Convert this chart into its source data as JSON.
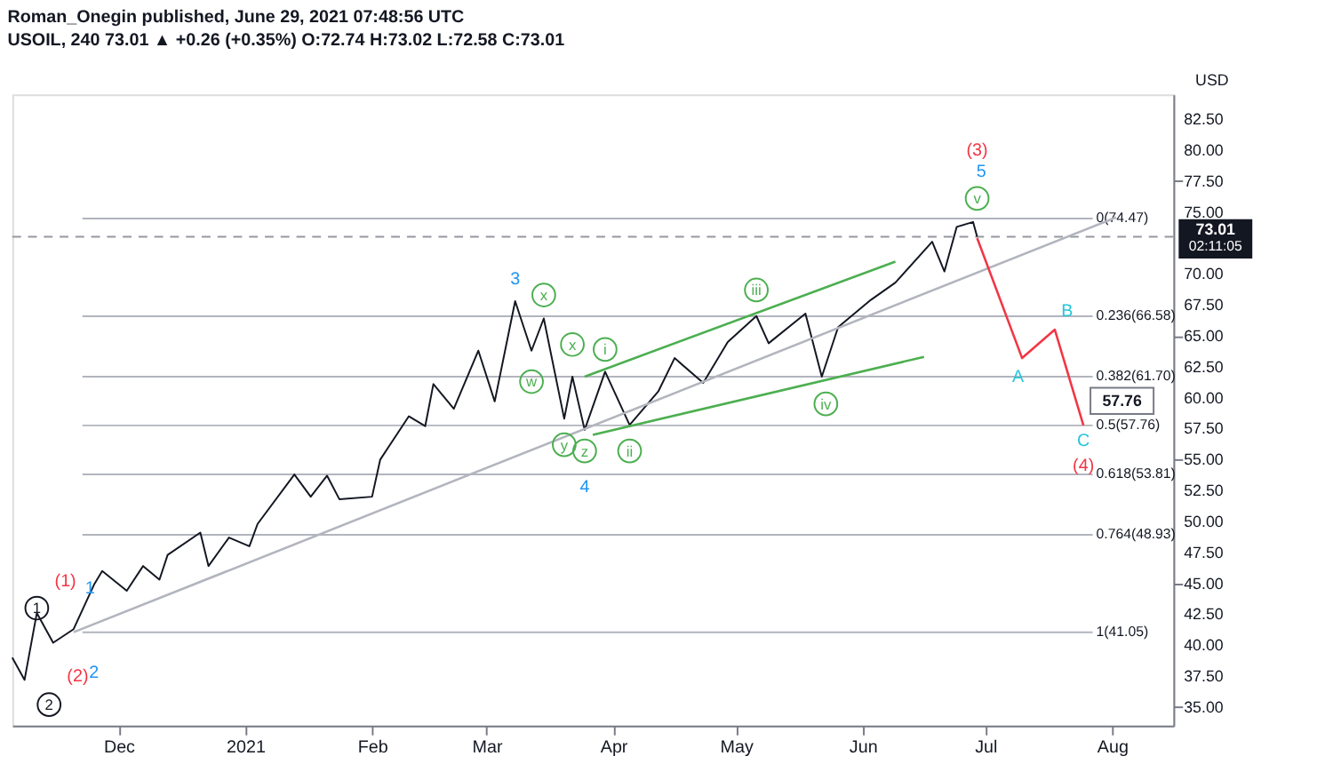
{
  "chart_data": {
    "type": "line",
    "title": "Roman_Onegin published, June 29, 2021 07:48:56 UTC",
    "subtitle": "USOIL, 240 73.01 ▲ +0.26 (+0.35%) O:72.74 H:73.02 L:72.58 C:73.01",
    "ylabel": "USD",
    "xlim": [
      "2020-11-05",
      "2021-08-16"
    ],
    "xticks": [
      {
        "value": "2020-12-01",
        "label": "Dec"
      },
      {
        "value": "2021-01-01",
        "label": "2021"
      },
      {
        "value": "2021-02-01",
        "label": "Feb"
      },
      {
        "value": "2021-03-01",
        "label": "Mar"
      },
      {
        "value": "2021-04-01",
        "label": "Apr"
      },
      {
        "value": "2021-05-01",
        "label": "May"
      },
      {
        "value": "2021-06-01",
        "label": "Jun"
      },
      {
        "value": "2021-07-01",
        "label": "Jul"
      },
      {
        "value": "2021-08-01",
        "label": "Aug"
      }
    ],
    "ylim": [
      33.5,
      84.5
    ],
    "yticks": [
      {
        "value": 35,
        "label": "35.00"
      },
      {
        "value": 37.5,
        "label": "37.50"
      },
      {
        "value": 40,
        "label": "40.00"
      },
      {
        "value": 42.5,
        "label": "42.50"
      },
      {
        "value": 45,
        "label": "45.00"
      },
      {
        "value": 47.5,
        "label": "47.50"
      },
      {
        "value": 50,
        "label": "50.00"
      },
      {
        "value": 52.5,
        "label": "52.50"
      },
      {
        "value": 55,
        "label": "55.00"
      },
      {
        "value": 57.5,
        "label": "57.50"
      },
      {
        "value": 60,
        "label": "60.00"
      },
      {
        "value": 62.5,
        "label": "62.50"
      },
      {
        "value": 65,
        "label": "65.00"
      },
      {
        "value": 67.5,
        "label": "67.50"
      },
      {
        "value": 70,
        "label": "70.00"
      },
      {
        "value": 75,
        "label": "75.00"
      },
      {
        "value": 77.5,
        "label": "77.50"
      },
      {
        "value": 80,
        "label": "80.00"
      },
      {
        "value": 82.5,
        "label": "82.50"
      }
    ],
    "grid": false,
    "series": [
      {
        "color": "#131722",
        "x": [
          "2020-11-05",
          "2020-11-08",
          "2020-11-11",
          "2020-11-15",
          "2020-11-20",
          "2020-11-25",
          "2020-11-27",
          "2020-12-03",
          "2020-12-07",
          "2020-12-11",
          "2020-12-13",
          "2020-12-21",
          "2020-12-23",
          "2020-12-28",
          "2021-01-02",
          "2021-01-04",
          "2021-01-13",
          "2021-01-17",
          "2021-01-21",
          "2021-01-24",
          "2021-02-01",
          "2021-02-03",
          "2021-02-10",
          "2021-02-14",
          "2021-02-16",
          "2021-02-21",
          "2021-02-27",
          "2021-03-03",
          "2021-03-08",
          "2021-03-12",
          "2021-03-15",
          "2021-03-20",
          "2021-03-22",
          "2021-03-25",
          "2021-03-30",
          "2021-04-05",
          "2021-04-12",
          "2021-04-16",
          "2021-04-23",
          "2021-04-29",
          "2021-05-06",
          "2021-05-09",
          "2021-05-18",
          "2021-05-22",
          "2021-05-26",
          "2021-06-03",
          "2021-06-09",
          "2021-06-18",
          "2021-06-21",
          "2021-06-24",
          "2021-06-28",
          "2021-06-29"
        ],
        "values": [
          39.0,
          37.2,
          42.6,
          40.2,
          41.3,
          44.9,
          46.0,
          44.4,
          46.4,
          45.3,
          47.3,
          49.1,
          46.4,
          48.7,
          48.0,
          49.8,
          53.8,
          52.0,
          53.7,
          51.8,
          52.0,
          55.0,
          58.5,
          57.7,
          61.1,
          59.1,
          63.8,
          59.7,
          67.8,
          63.8,
          66.4,
          58.3,
          61.7,
          57.4,
          62.1,
          57.8,
          60.5,
          63.2,
          61.2,
          64.5,
          66.6,
          64.4,
          66.8,
          61.7,
          65.7,
          67.9,
          69.3,
          72.6,
          70.2,
          73.8,
          74.2,
          73.01
        ]
      },
      {
        "type": "line",
        "color": "#b2b5be",
        "x": [
          "2020-11-20",
          "2021-08-02"
        ],
        "values": [
          41.05,
          74.57
        ]
      },
      {
        "type": "line",
        "color": "#4caf50",
        "x": [
          "2021-03-25",
          "2021-06-09"
        ],
        "values": [
          61.7,
          71.0
        ]
      },
      {
        "type": "line",
        "color": "#4caf50",
        "x": [
          "2021-03-27",
          "2021-06-16"
        ],
        "values": [
          57.0,
          63.3
        ]
      },
      {
        "type": "line",
        "color": "#f23645",
        "x": [
          "2021-06-29",
          "2021-07-10",
          "2021-07-18",
          "2021-07-25"
        ],
        "values": [
          72.9,
          63.2,
          65.5,
          57.76
        ]
      }
    ],
    "ref_lines": [
      {
        "axis": "y",
        "value": 74.47,
        "label": "0(74.47)",
        "color": "#b2b5be"
      },
      {
        "axis": "y",
        "value": 66.58,
        "label": "0.236(66.58)",
        "color": "#b2b5be"
      },
      {
        "axis": "y",
        "value": 61.7,
        "label": "0.382(61.70)",
        "color": "#b2b5be"
      },
      {
        "axis": "y",
        "value": 57.76,
        "label": "0.5(57.76)",
        "color": "#b2b5be"
      },
      {
        "axis": "y",
        "value": 53.81,
        "label": "0.618(53.81)",
        "color": "#b2b5be"
      },
      {
        "axis": "y",
        "value": 48.93,
        "label": "0.764(48.93)",
        "color": "#b2b5be"
      },
      {
        "axis": "y",
        "value": 41.05,
        "label": "1(41.05)",
        "color": "#b2b5be"
      },
      {
        "axis": "y",
        "value": 73.01,
        "label": "73.01",
        "color": "#9598a1",
        "line_style": "dashed"
      }
    ],
    "annotations": [
      "02:11:05",
      {
        "text": "57.76",
        "x": "2021-07-25",
        "y": 57.76
      },
      "(1)",
      "(2)",
      "(3)",
      "(4)",
      "1",
      "2",
      "3",
      "4",
      "5",
      "A",
      "B",
      "C",
      "1",
      "2",
      "x",
      "x",
      "w",
      "y",
      "z",
      "i",
      "ii",
      "iii",
      "iv",
      "v"
    ]
  }
}
